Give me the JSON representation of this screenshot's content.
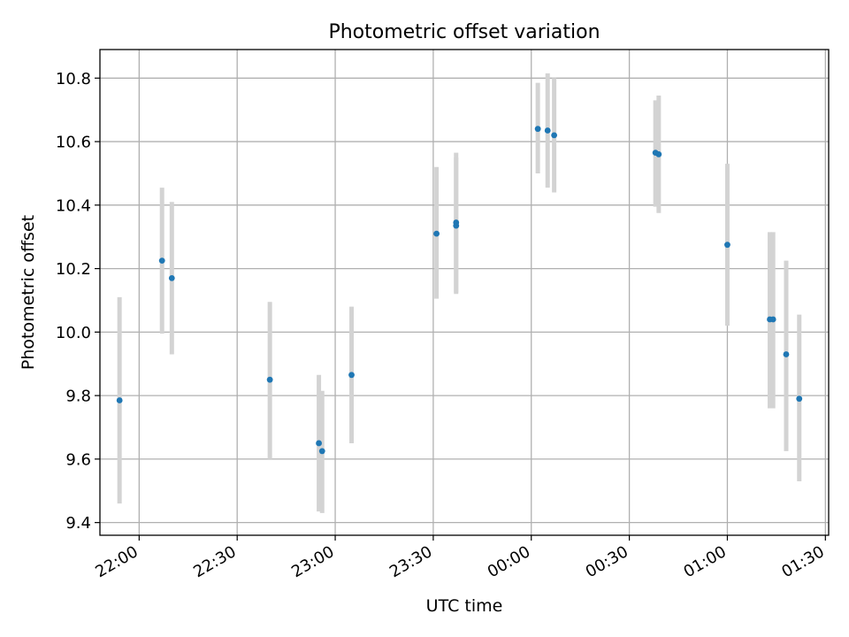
{
  "chart_data": {
    "type": "scatter",
    "title": "Photometric offset variation",
    "xlabel": "UTC time",
    "ylabel": "Photometric offset",
    "x_ticks": [
      "22:00",
      "22:30",
      "23:00",
      "23:30",
      "00:00",
      "00:30",
      "01:00",
      "01:30"
    ],
    "y_ticks": [
      "9.4",
      "9.6",
      "9.8",
      "10.0",
      "10.2",
      "10.4",
      "10.6",
      "10.8"
    ],
    "xlim": [
      "21:48",
      "01:31"
    ],
    "ylim": [
      9.36,
      10.89
    ],
    "grid": true,
    "series": [
      {
        "marker_color": "#1f77b4",
        "errorbar_color": "#d3d3d3",
        "points": [
          {
            "x": "21:54",
            "y": 9.785,
            "y_low": 9.46,
            "y_high": 10.11
          },
          {
            "x": "22:07",
            "y": 10.225,
            "y_low": 9.995,
            "y_high": 10.455
          },
          {
            "x": "22:10",
            "y": 10.17,
            "y_low": 9.93,
            "y_high": 10.41
          },
          {
            "x": "22:40",
            "y": 9.85,
            "y_low": 9.6,
            "y_high": 10.095
          },
          {
            "x": "22:55",
            "y": 9.65,
            "y_low": 9.435,
            "y_high": 9.865
          },
          {
            "x": "22:56",
            "y": 9.625,
            "y_low": 9.43,
            "y_high": 9.815
          },
          {
            "x": "23:05",
            "y": 9.865,
            "y_low": 9.65,
            "y_high": 10.08
          },
          {
            "x": "23:31",
            "y": 10.31,
            "y_low": 10.105,
            "y_high": 10.52
          },
          {
            "x": "23:37",
            "y": 10.345,
            "y_low": 10.125,
            "y_high": 10.565
          },
          {
            "x": "23:37",
            "y": 10.335,
            "y_low": 10.12,
            "y_high": 10.55
          },
          {
            "x": "00:02",
            "y": 10.64,
            "y_low": 10.5,
            "y_high": 10.785
          },
          {
            "x": "00:05",
            "y": 10.635,
            "y_low": 10.455,
            "y_high": 10.815
          },
          {
            "x": "00:07",
            "y": 10.62,
            "y_low": 10.44,
            "y_high": 10.8
          },
          {
            "x": "00:38",
            "y": 10.565,
            "y_low": 10.395,
            "y_high": 10.73
          },
          {
            "x": "00:39",
            "y": 10.56,
            "y_low": 10.375,
            "y_high": 10.745
          },
          {
            "x": "01:00",
            "y": 10.275,
            "y_low": 10.02,
            "y_high": 10.53
          },
          {
            "x": "01:13",
            "y": 10.04,
            "y_low": 9.76,
            "y_high": 10.315
          },
          {
            "x": "01:14",
            "y": 10.04,
            "y_low": 9.76,
            "y_high": 10.315
          },
          {
            "x": "01:18",
            "y": 9.93,
            "y_low": 9.625,
            "y_high": 10.225
          },
          {
            "x": "01:22",
            "y": 9.79,
            "y_low": 9.53,
            "y_high": 10.055
          }
        ]
      }
    ]
  }
}
